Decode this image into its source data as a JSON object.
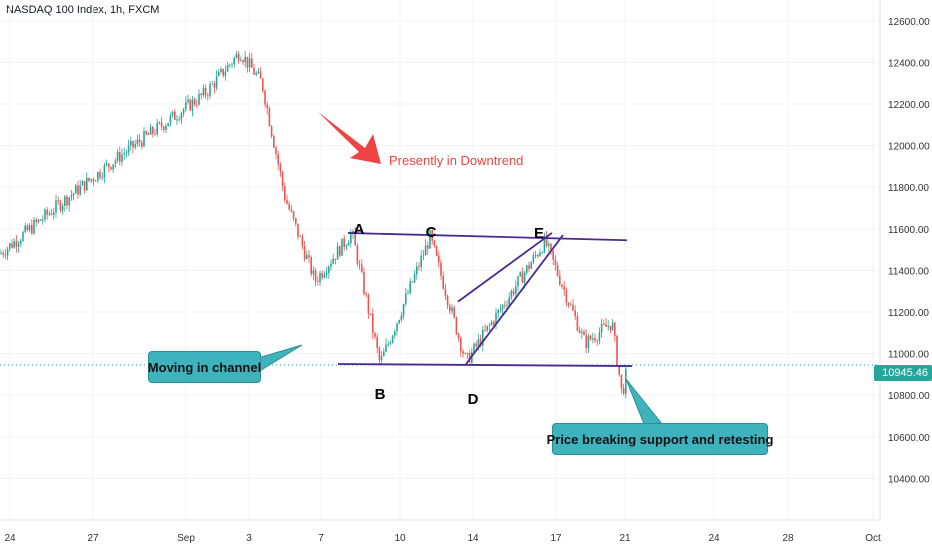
{
  "title": "NASDAQ 100 Index, 1h, FXCM",
  "colors": {
    "up": "#26a69a",
    "down": "#ef5350",
    "line": "#4a2a8e",
    "annotation_red": "#ef4444",
    "callout_fill": "#3fb3bd",
    "axis_text": "#333333"
  },
  "labels": {
    "points": [
      "A",
      "B",
      "C",
      "D",
      "E"
    ],
    "trend_note": "Presently in Downtrend",
    "callout_channel": "Moving in channel",
    "callout_breakdown": "Price breaking support and retesting"
  },
  "current_price": "10945.46",
  "chart_data": {
    "type": "candlestick",
    "ylim": [
      10200,
      12700
    ],
    "y_ticks": [
      "12600.00",
      "12400.00",
      "12200.00",
      "12000.00",
      "11800.00",
      "11600.00",
      "11400.00",
      "11200.00",
      "11000.00",
      "10800.00",
      "10600.00",
      "10400.00"
    ],
    "x_ticks": [
      "24",
      "27",
      "Sep",
      "3",
      "7",
      "10",
      "14",
      "17",
      "21",
      "24",
      "28",
      "Oct"
    ],
    "price_path": [
      {
        "x": "Aug 24",
        "close": 11480
      },
      {
        "x": "Aug 26",
        "close": 11720
      },
      {
        "x": "Aug 28",
        "close": 11950
      },
      {
        "x": "Sep 1",
        "close": 12250
      },
      {
        "x": "Sep 2",
        "close": 12450
      },
      {
        "x": "Sep 3",
        "close": 12300
      },
      {
        "x": "Sep 4",
        "close": 11750
      },
      {
        "x": "Sep 7",
        "close": 11350
      },
      {
        "x": "Sep 8 (A)",
        "close": 11580
      },
      {
        "x": "Sep 9 (B)",
        "close": 10950
      },
      {
        "x": "Sep 11 (C)",
        "close": 11560
      },
      {
        "x": "Sep 14 (D)",
        "close": 10960
      },
      {
        "x": "Sep 16 (E)",
        "close": 11540
      },
      {
        "x": "Sep 18",
        "close": 11050
      },
      {
        "x": "Sep 20",
        "close": 11150
      },
      {
        "x": "Sep 21",
        "close": 10800
      },
      {
        "x": "Sep 21 last",
        "close": 10945
      }
    ],
    "trendlines": [
      {
        "name": "upper channel",
        "from": {
          "x": "Sep 8",
          "y": 11580
        },
        "to": {
          "x": "Sep 20",
          "y": 11545
        }
      },
      {
        "name": "support",
        "from": {
          "x": "Sep 8",
          "y": 10950
        },
        "to": {
          "x": "Sep 21",
          "y": 10940
        }
      },
      {
        "name": "wedge lower",
        "from": {
          "x": "Sep 14",
          "y": 10950
        },
        "to": {
          "x": "Sep 17",
          "y": 11570
        }
      },
      {
        "name": "wedge upper",
        "from": {
          "x": "Sep 13",
          "y": 11250
        },
        "to": {
          "x": "Sep 16",
          "y": 11580
        }
      }
    ]
  }
}
